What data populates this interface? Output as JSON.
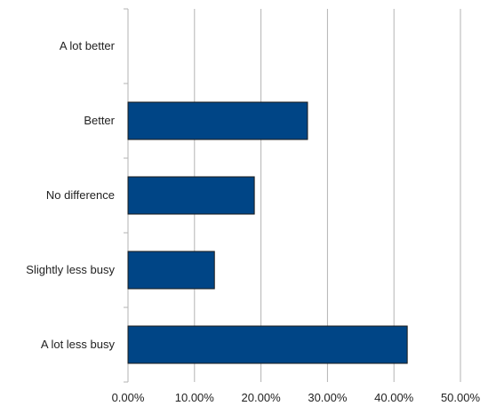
{
  "chart_data": {
    "type": "bar",
    "orientation": "horizontal",
    "title": "",
    "xlabel": "",
    "ylabel": "",
    "categories": [
      "A lot better",
      "Better",
      "No difference",
      "Slightly less busy",
      "A lot less busy"
    ],
    "values": [
      0,
      27,
      19,
      13,
      42
    ],
    "value_unit": "percent",
    "xlim": [
      0,
      50
    ],
    "xticks": [
      0,
      10,
      20,
      30,
      40,
      50
    ],
    "xtick_labels": [
      "0.00%",
      "10.00%",
      "20.00%",
      "30.00%",
      "40.00%",
      "50.00%"
    ],
    "grid": "vertical lines on",
    "legend": "none",
    "colors": {
      "bar_fill": "#004586",
      "bar_stroke": "#1a1a1a",
      "grid": "#b3b3b3",
      "axis": "#b3b3b3"
    }
  }
}
